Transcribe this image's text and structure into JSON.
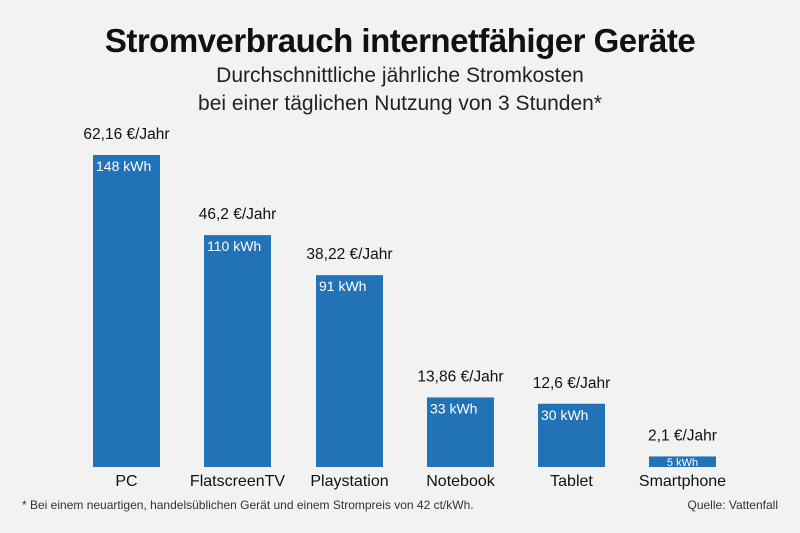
{
  "chart_data": {
    "type": "bar",
    "title": "Stromverbrauch internetfähiger Geräte",
    "subtitle": [
      "Durchschnittliche jährliche Stromkosten",
      "bei einer täglichen Nutzung von 3 Stunden*"
    ],
    "categories": [
      "PC",
      "FlatscreenTV",
      "Playstation",
      "Notebook",
      "Tablet",
      "Smartphone"
    ],
    "values": [
      148,
      110,
      91,
      33,
      30,
      5
    ],
    "value_labels": [
      "148 kWh",
      "110 kWh",
      "91 kWh",
      "33 kWh",
      "30 kWh",
      "5 kWh"
    ],
    "cost_labels": [
      "62,16 €/Jahr",
      "46,2 €/Jahr",
      "38,22 €/Jahr",
      "13,86 €/Jahr",
      "12,6 €/Jahr",
      "2,1 €/Jahr"
    ],
    "unit": "kWh",
    "ylim": [
      0,
      148
    ],
    "grid": false,
    "bar_color": "#2272b8",
    "background": "#f2f2f2"
  },
  "footnote": "* Bei einem neuartigen, handelsüblichen Gerät und einem Strompreis von 42 ct/kWh.",
  "source": "Quelle: Vattenfall"
}
